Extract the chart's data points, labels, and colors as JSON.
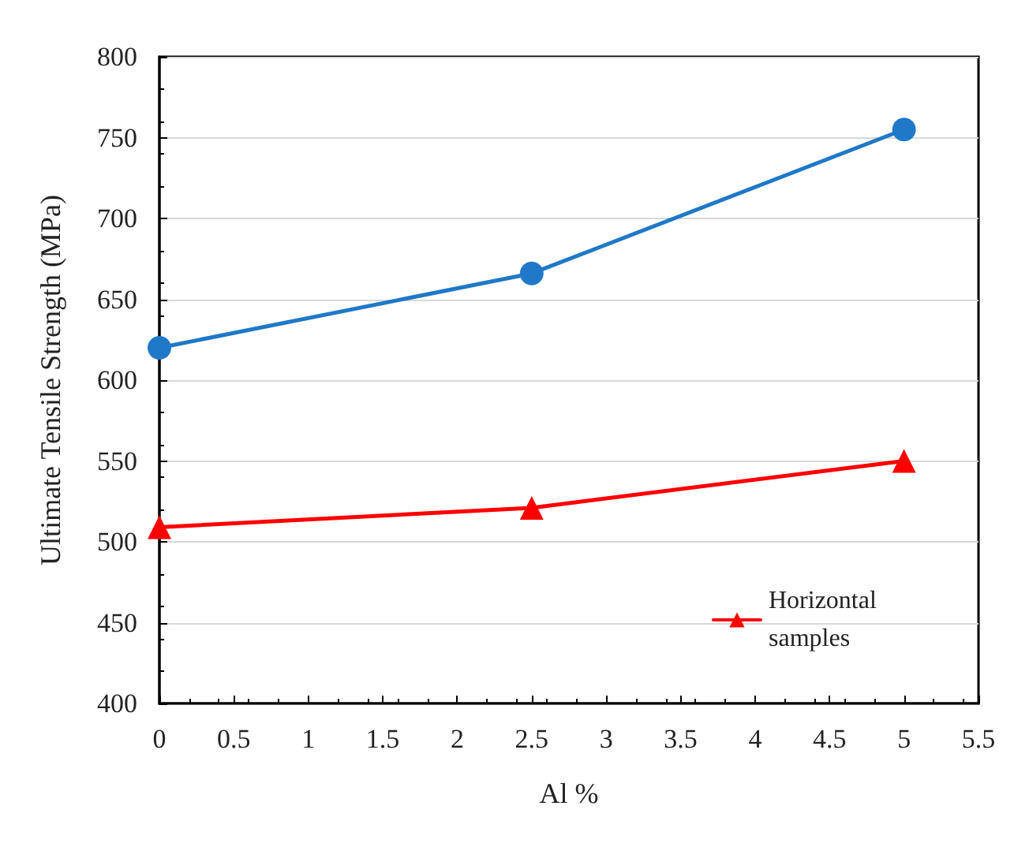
{
  "chart_data": {
    "type": "line",
    "xlabel": "Al %",
    "ylabel": "Ultimate Tensile Strength (MPa)",
    "x": [
      0,
      2.5,
      5
    ],
    "series": [
      {
        "color": "#1f78c8",
        "marker": "circle",
        "values": [
          620,
          666,
          755
        ]
      },
      {
        "name": "Horizontal samples",
        "color": "#ff0000",
        "marker": "triangle",
        "values": [
          509,
          521,
          550
        ]
      }
    ],
    "xlim": [
      0,
      5.5
    ],
    "xticks": [
      0,
      0.5,
      1,
      1.5,
      2,
      2.5,
      3,
      3.5,
      4,
      4.5,
      5,
      5.5
    ],
    "ylim": [
      400,
      800
    ],
    "yticks": [
      400,
      450,
      500,
      550,
      600,
      650,
      700,
      750,
      800
    ],
    "grid": "y",
    "legend": "bottom right",
    "line_style": "solid"
  }
}
